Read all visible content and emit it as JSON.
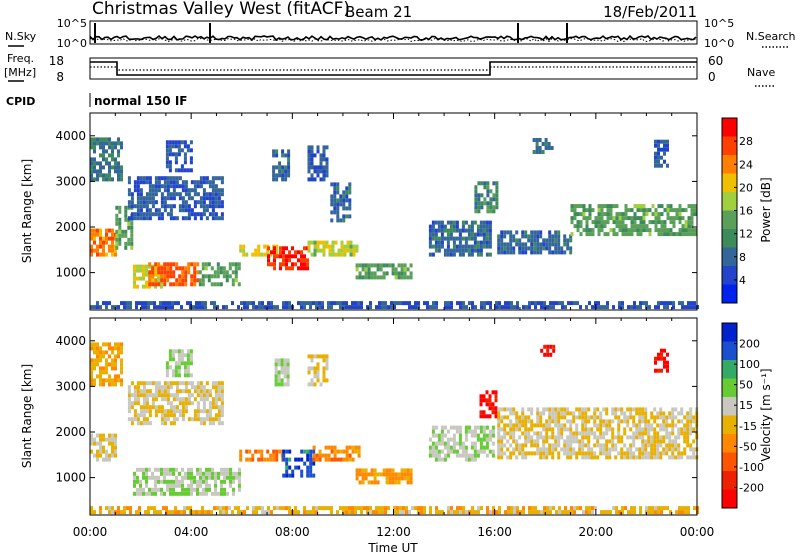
{
  "header": {
    "radar": "Christmas Valley West (fitACF)",
    "beam": "Beam 21",
    "date": "18/Feb/2011"
  },
  "top_panels": {
    "nsky_label": "N.Sky",
    "nsearch_label": "N.Search",
    "nsky_ticks": [
      "10^5",
      "10^0"
    ],
    "nsearch_ticks": [
      "10^5",
      "10^0"
    ],
    "freq_label_1": "Freq.",
    "freq_label_2": "[MHz]",
    "freq_ticks": [
      "18",
      "8"
    ],
    "nave_label": "Nave",
    "nave_ticks": [
      "60",
      "0"
    ],
    "cpid_label": "CPID",
    "cpid_text": "normal 150 IF"
  },
  "colors": {
    "power_scale": [
      "#0022ee",
      "#2244cc",
      "#336699",
      "#3d8a5a",
      "#5aa05a",
      "#a0d040",
      "#f0c000",
      "#ff8000",
      "#ff4000",
      "#ff0000"
    ],
    "velocity_scale": [
      "#0022cc",
      "#1a4fd0",
      "#33aa66",
      "#66cc33",
      "#c8c8c0",
      "#e8b000",
      "#ff8800",
      "#ff5500",
      "#ee2200",
      "#ff0000"
    ]
  },
  "chart_data": [
    {
      "type": "heatmap",
      "name": "Power",
      "xlabel": "",
      "ylabel": "Slant Range [km]",
      "xlim": [
        "00:00",
        "24:00"
      ],
      "ylim": [
        180,
        4500
      ],
      "yticks": [
        "1000",
        "2000",
        "3000",
        "4000"
      ],
      "colorbar_label": "Power [dB]",
      "colorbar_ticks": [
        "4",
        "8",
        "12",
        "16",
        "20",
        "24",
        "28"
      ],
      "colorbar_range": [
        0,
        32
      ],
      "regions": [
        {
          "t0": 0.0,
          "t1": 1.0,
          "r0": 1350,
          "r1": 1900,
          "v": 24
        },
        {
          "t0": 0.0,
          "t1": 1.2,
          "r0": 3000,
          "r1": 3950,
          "v": 9
        },
        {
          "t0": 1.0,
          "t1": 1.6,
          "r0": 1500,
          "r1": 2400,
          "v": 14
        },
        {
          "t0": 1.7,
          "t1": 2.8,
          "r0": 650,
          "r1": 1150,
          "v": 19
        },
        {
          "t0": 2.3,
          "t1": 4.3,
          "r0": 700,
          "r1": 1200,
          "v": 26
        },
        {
          "t0": 4.3,
          "t1": 5.9,
          "r0": 700,
          "r1": 1150,
          "v": 14
        },
        {
          "t0": 1.5,
          "t1": 5.2,
          "r0": 2150,
          "r1": 3050,
          "v": 7
        },
        {
          "t0": 3.0,
          "t1": 4.0,
          "r0": 3200,
          "r1": 3900,
          "v": 6
        },
        {
          "t0": 5.9,
          "t1": 7.4,
          "r0": 1350,
          "r1": 1600,
          "v": 20
        },
        {
          "t0": 7.0,
          "t1": 8.6,
          "r0": 1050,
          "r1": 1500,
          "v": 29
        },
        {
          "t0": 8.6,
          "t1": 10.6,
          "r0": 1350,
          "r1": 1650,
          "v": 18
        },
        {
          "t0": 7.2,
          "t1": 7.8,
          "r0": 3000,
          "r1": 3700,
          "v": 8
        },
        {
          "t0": 8.6,
          "t1": 9.4,
          "r0": 3000,
          "r1": 3750,
          "v": 7
        },
        {
          "t0": 9.5,
          "t1": 10.3,
          "r0": 2100,
          "r1": 2900,
          "v": 8
        },
        {
          "t0": 10.5,
          "t1": 12.7,
          "r0": 850,
          "r1": 1200,
          "v": 14
        },
        {
          "t0": 13.4,
          "t1": 15.8,
          "r0": 1350,
          "r1": 2100,
          "v": 8
        },
        {
          "t0": 15.2,
          "t1": 16.1,
          "r0": 2300,
          "r1": 3000,
          "v": 11
        },
        {
          "t0": 16.1,
          "t1": 19.0,
          "r0": 1400,
          "r1": 1900,
          "v": 8
        },
        {
          "t0": 17.5,
          "t1": 18.3,
          "r0": 3600,
          "r1": 3950,
          "v": 10
        },
        {
          "t0": 19.0,
          "t1": 24.0,
          "r0": 1800,
          "r1": 2500,
          "v": 14
        },
        {
          "t0": 22.3,
          "t1": 22.8,
          "r0": 3300,
          "r1": 3850,
          "v": 7
        },
        {
          "t0": 0.0,
          "t1": 24.0,
          "r0": 200,
          "r1": 330,
          "v": 6
        }
      ]
    },
    {
      "type": "heatmap",
      "name": "Velocity",
      "xlabel": "Time UT",
      "ylabel": "Slant Range [km]",
      "xlim": [
        "00:00",
        "24:00"
      ],
      "ylim": [
        180,
        4500
      ],
      "xticks": [
        "00:00",
        "04:00",
        "08:00",
        "12:00",
        "16:00",
        "20:00",
        "00:00"
      ],
      "yticks": [
        "1000",
        "2000",
        "3000",
        "4000"
      ],
      "colorbar_label": "Velocity [m s⁻¹]",
      "colorbar_ticks": [
        "200",
        "100",
        "50",
        "15",
        "-15",
        "-50",
        "-100",
        "-200"
      ],
      "colorbar_range": [
        -250,
        250
      ],
      "regions": [
        {
          "t0": 0.0,
          "t1": 1.0,
          "r0": 1350,
          "r1": 1950,
          "v": 0
        },
        {
          "t0": 0.0,
          "t1": 1.2,
          "r0": 3000,
          "r1": 3900,
          "v": -40
        },
        {
          "t0": 1.7,
          "t1": 5.9,
          "r0": 600,
          "r1": 1200,
          "v": 45
        },
        {
          "t0": 1.5,
          "t1": 5.2,
          "r0": 2150,
          "r1": 3050,
          "v": 5
        },
        {
          "t0": 3.0,
          "t1": 4.0,
          "r0": 3200,
          "r1": 3800,
          "v": 45
        },
        {
          "t0": 5.9,
          "t1": 7.6,
          "r0": 1350,
          "r1": 1600,
          "v": -90
        },
        {
          "t0": 7.6,
          "t1": 8.8,
          "r0": 1000,
          "r1": 1550,
          "v": 180
        },
        {
          "t0": 8.8,
          "t1": 10.6,
          "r0": 1350,
          "r1": 1650,
          "v": -75
        },
        {
          "t0": 7.3,
          "t1": 7.8,
          "r0": 3000,
          "r1": 3600,
          "v": 40
        },
        {
          "t0": 8.6,
          "t1": 9.4,
          "r0": 3000,
          "r1": 3700,
          "v": 5
        },
        {
          "t0": 10.5,
          "t1": 12.7,
          "r0": 850,
          "r1": 1200,
          "v": -60
        },
        {
          "t0": 13.4,
          "t1": 16.0,
          "r0": 1350,
          "r1": 2100,
          "v": 40
        },
        {
          "t0": 15.4,
          "t1": 16.0,
          "r0": 2300,
          "r1": 2900,
          "v": -210
        },
        {
          "t0": 17.8,
          "t1": 18.3,
          "r0": 3650,
          "r1": 3900,
          "v": -210
        },
        {
          "t0": 22.3,
          "t1": 22.8,
          "r0": 3300,
          "r1": 3800,
          "v": -210
        },
        {
          "t0": 16.1,
          "t1": 24.0,
          "r0": 1400,
          "r1": 2500,
          "v": 0
        },
        {
          "t0": 0.0,
          "t1": 24.0,
          "r0": 200,
          "r1": 330,
          "v": -30
        }
      ]
    }
  ]
}
